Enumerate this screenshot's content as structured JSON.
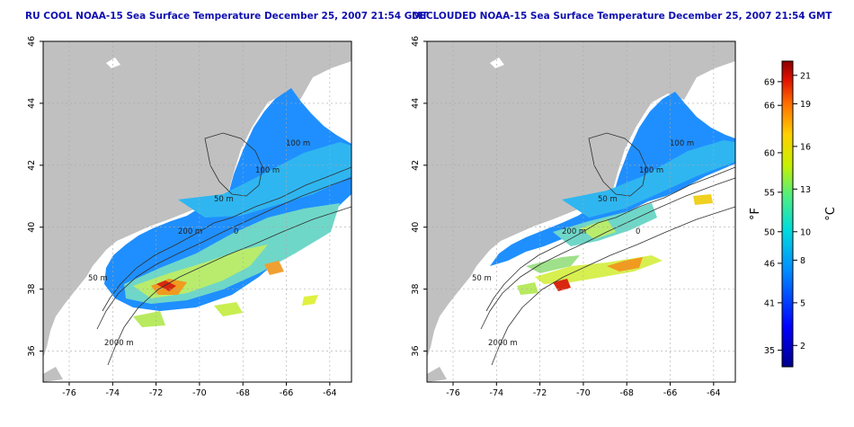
{
  "maps": [
    {
      "title": "RU COOL NOAA-15 Sea Surface Temperature December 25, 2007 21:54 GMT",
      "variant": "raw",
      "contours": [
        "100 m",
        "100 m",
        "50 m",
        "200 m",
        "50 m",
        "2000 m",
        "0"
      ]
    },
    {
      "title": "DECLOUDED NOAA-15 Sea Surface Temperature December 25, 2007 21:54 GMT",
      "variant": "declouded",
      "contours": [
        "100 m",
        "100 m",
        "50 m",
        "200 m",
        "50 m",
        "2000 m",
        "0"
      ]
    }
  ],
  "axes": {
    "x_ticks": [
      "-76",
      "-74",
      "-72",
      "-70",
      "-68",
      "-66",
      "-64"
    ],
    "y_ticks": [
      "46",
      "44",
      "42",
      "40",
      "38",
      "36"
    ],
    "x_range": [
      -77.2,
      -63.0
    ],
    "y_range": [
      35.0,
      46.0
    ]
  },
  "colorbar": {
    "fahrenheit_label": "°F",
    "celsius_label": "°C",
    "fahrenheit_ticks": [
      "69",
      "66",
      "60",
      "55",
      "50",
      "46",
      "41",
      "35"
    ],
    "celsius_ticks": [
      "21",
      "19",
      "16",
      "13",
      "10",
      "8",
      "5",
      "2"
    ],
    "celsius_range": [
      0.5,
      22
    ]
  },
  "colors": {
    "land": "#c0c0c0",
    "grid": "#a8a8a8",
    "title": "#1010b0"
  }
}
